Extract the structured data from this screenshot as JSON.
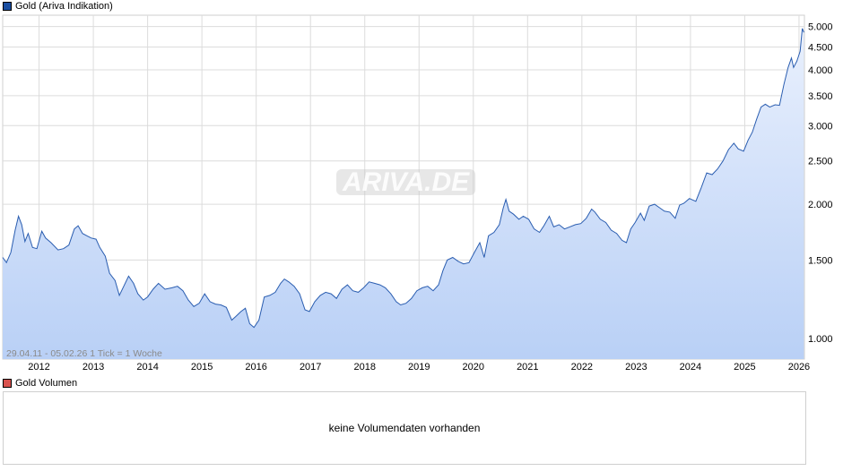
{
  "legend_price": {
    "label": "Gold (Ariva Indikation)",
    "color": "#1a4ea1"
  },
  "legend_volume": {
    "label": "Gold Volumen",
    "color": "#d9534f"
  },
  "watermark": "ARIVA.DE",
  "range_info": "29.04.11 - 05.02.26    1 Tick = 1 Woche",
  "volume_message": "keine Volumendaten vorhanden",
  "colors": {
    "line": "#2a5db0",
    "fill_top": "#e9f0fd",
    "fill_bottom": "#b9d0f6",
    "grid": "#dcdcdc"
  },
  "chart_data": {
    "type": "area",
    "yscale": "log",
    "ylim": [
      900,
      5300
    ],
    "xlim": [
      2011.33,
      2026.1
    ],
    "xticks": [
      "2012",
      "2013",
      "2014",
      "2015",
      "2016",
      "2017",
      "2018",
      "2019",
      "2020",
      "2021",
      "2022",
      "2023",
      "2024",
      "2025",
      "2026"
    ],
    "yticks": [
      "1.000",
      "1.500",
      "2.000",
      "2.500",
      "3.000",
      "3.500",
      "4.000",
      "4.500",
      "5.000"
    ],
    "ytick_values": [
      1000,
      1500,
      2000,
      2500,
      3000,
      3500,
      4000,
      4500,
      5000
    ],
    "series": [
      {
        "points": [
          [
            2011.33,
            1520
          ],
          [
            2011.4,
            1480
          ],
          [
            2011.48,
            1560
          ],
          [
            2011.56,
            1750
          ],
          [
            2011.62,
            1880
          ],
          [
            2011.68,
            1800
          ],
          [
            2011.74,
            1650
          ],
          [
            2011.8,
            1720
          ],
          [
            2011.88,
            1600
          ],
          [
            2011.96,
            1590
          ],
          [
            2012.05,
            1740
          ],
          [
            2012.12,
            1680
          ],
          [
            2012.22,
            1640
          ],
          [
            2012.35,
            1580
          ],
          [
            2012.45,
            1590
          ],
          [
            2012.55,
            1620
          ],
          [
            2012.65,
            1760
          ],
          [
            2012.72,
            1790
          ],
          [
            2012.8,
            1720
          ],
          [
            2012.88,
            1700
          ],
          [
            2012.96,
            1680
          ],
          [
            2013.05,
            1670
          ],
          [
            2013.12,
            1600
          ],
          [
            2013.22,
            1530
          ],
          [
            2013.3,
            1400
          ],
          [
            2013.4,
            1350
          ],
          [
            2013.48,
            1250
          ],
          [
            2013.56,
            1310
          ],
          [
            2013.65,
            1380
          ],
          [
            2013.74,
            1330
          ],
          [
            2013.82,
            1260
          ],
          [
            2013.92,
            1220
          ],
          [
            2014.0,
            1240
          ],
          [
            2014.1,
            1290
          ],
          [
            2014.2,
            1330
          ],
          [
            2014.32,
            1290
          ],
          [
            2014.45,
            1300
          ],
          [
            2014.55,
            1310
          ],
          [
            2014.65,
            1280
          ],
          [
            2014.75,
            1220
          ],
          [
            2014.85,
            1180
          ],
          [
            2014.95,
            1200
          ],
          [
            2015.05,
            1260
          ],
          [
            2015.15,
            1210
          ],
          [
            2015.25,
            1195
          ],
          [
            2015.35,
            1190
          ],
          [
            2015.45,
            1175
          ],
          [
            2015.55,
            1100
          ],
          [
            2015.62,
            1120
          ],
          [
            2015.72,
            1150
          ],
          [
            2015.8,
            1170
          ],
          [
            2015.88,
            1080
          ],
          [
            2015.96,
            1060
          ],
          [
            2016.05,
            1100
          ],
          [
            2016.15,
            1240
          ],
          [
            2016.25,
            1250
          ],
          [
            2016.35,
            1270
          ],
          [
            2016.45,
            1330
          ],
          [
            2016.52,
            1360
          ],
          [
            2016.6,
            1340
          ],
          [
            2016.7,
            1310
          ],
          [
            2016.8,
            1260
          ],
          [
            2016.9,
            1160
          ],
          [
            2016.98,
            1150
          ],
          [
            2017.08,
            1210
          ],
          [
            2017.18,
            1250
          ],
          [
            2017.28,
            1270
          ],
          [
            2017.38,
            1260
          ],
          [
            2017.48,
            1230
          ],
          [
            2017.58,
            1290
          ],
          [
            2017.68,
            1320
          ],
          [
            2017.78,
            1280
          ],
          [
            2017.88,
            1270
          ],
          [
            2017.98,
            1300
          ],
          [
            2018.08,
            1340
          ],
          [
            2018.18,
            1330
          ],
          [
            2018.28,
            1320
          ],
          [
            2018.38,
            1300
          ],
          [
            2018.48,
            1260
          ],
          [
            2018.58,
            1210
          ],
          [
            2018.66,
            1190
          ],
          [
            2018.76,
            1200
          ],
          [
            2018.86,
            1230
          ],
          [
            2018.96,
            1280
          ],
          [
            2019.06,
            1300
          ],
          [
            2019.16,
            1310
          ],
          [
            2019.26,
            1280
          ],
          [
            2019.36,
            1320
          ],
          [
            2019.44,
            1420
          ],
          [
            2019.52,
            1500
          ],
          [
            2019.62,
            1520
          ],
          [
            2019.72,
            1490
          ],
          [
            2019.82,
            1470
          ],
          [
            2019.92,
            1480
          ],
          [
            2020.02,
            1560
          ],
          [
            2020.12,
            1640
          ],
          [
            2020.2,
            1520
          ],
          [
            2020.28,
            1700
          ],
          [
            2020.38,
            1730
          ],
          [
            2020.48,
            1800
          ],
          [
            2020.55,
            1960
          ],
          [
            2020.6,
            2050
          ],
          [
            2020.66,
            1930
          ],
          [
            2020.74,
            1900
          ],
          [
            2020.84,
            1850
          ],
          [
            2020.92,
            1880
          ],
          [
            2021.02,
            1850
          ],
          [
            2021.12,
            1760
          ],
          [
            2021.22,
            1730
          ],
          [
            2021.3,
            1790
          ],
          [
            2021.4,
            1880
          ],
          [
            2021.48,
            1780
          ],
          [
            2021.58,
            1800
          ],
          [
            2021.68,
            1760
          ],
          [
            2021.78,
            1780
          ],
          [
            2021.88,
            1800
          ],
          [
            2021.98,
            1810
          ],
          [
            2022.08,
            1860
          ],
          [
            2022.18,
            1950
          ],
          [
            2022.24,
            1920
          ],
          [
            2022.34,
            1850
          ],
          [
            2022.44,
            1820
          ],
          [
            2022.54,
            1750
          ],
          [
            2022.64,
            1720
          ],
          [
            2022.74,
            1660
          ],
          [
            2022.82,
            1640
          ],
          [
            2022.9,
            1760
          ],
          [
            2022.98,
            1820
          ],
          [
            2023.08,
            1910
          ],
          [
            2023.15,
            1840
          ],
          [
            2023.24,
            1980
          ],
          [
            2023.34,
            2000
          ],
          [
            2023.44,
            1960
          ],
          [
            2023.52,
            1930
          ],
          [
            2023.62,
            1920
          ],
          [
            2023.72,
            1860
          ],
          [
            2023.8,
            1990
          ],
          [
            2023.88,
            2010
          ],
          [
            2023.98,
            2060
          ],
          [
            2024.1,
            2030
          ],
          [
            2024.2,
            2180
          ],
          [
            2024.3,
            2350
          ],
          [
            2024.4,
            2330
          ],
          [
            2024.5,
            2400
          ],
          [
            2024.6,
            2500
          ],
          [
            2024.7,
            2650
          ],
          [
            2024.8,
            2740
          ],
          [
            2024.88,
            2660
          ],
          [
            2024.98,
            2630
          ],
          [
            2025.06,
            2780
          ],
          [
            2025.14,
            2900
          ],
          [
            2025.22,
            3100
          ],
          [
            2025.3,
            3300
          ],
          [
            2025.38,
            3350
          ],
          [
            2025.46,
            3300
          ],
          [
            2025.56,
            3340
          ],
          [
            2025.64,
            3330
          ],
          [
            2025.72,
            3700
          ],
          [
            2025.8,
            4050
          ],
          [
            2025.86,
            4250
          ],
          [
            2025.9,
            4050
          ],
          [
            2025.96,
            4180
          ],
          [
            2026.02,
            4400
          ],
          [
            2026.06,
            4950
          ],
          [
            2026.09,
            4850
          ]
        ]
      }
    ]
  }
}
